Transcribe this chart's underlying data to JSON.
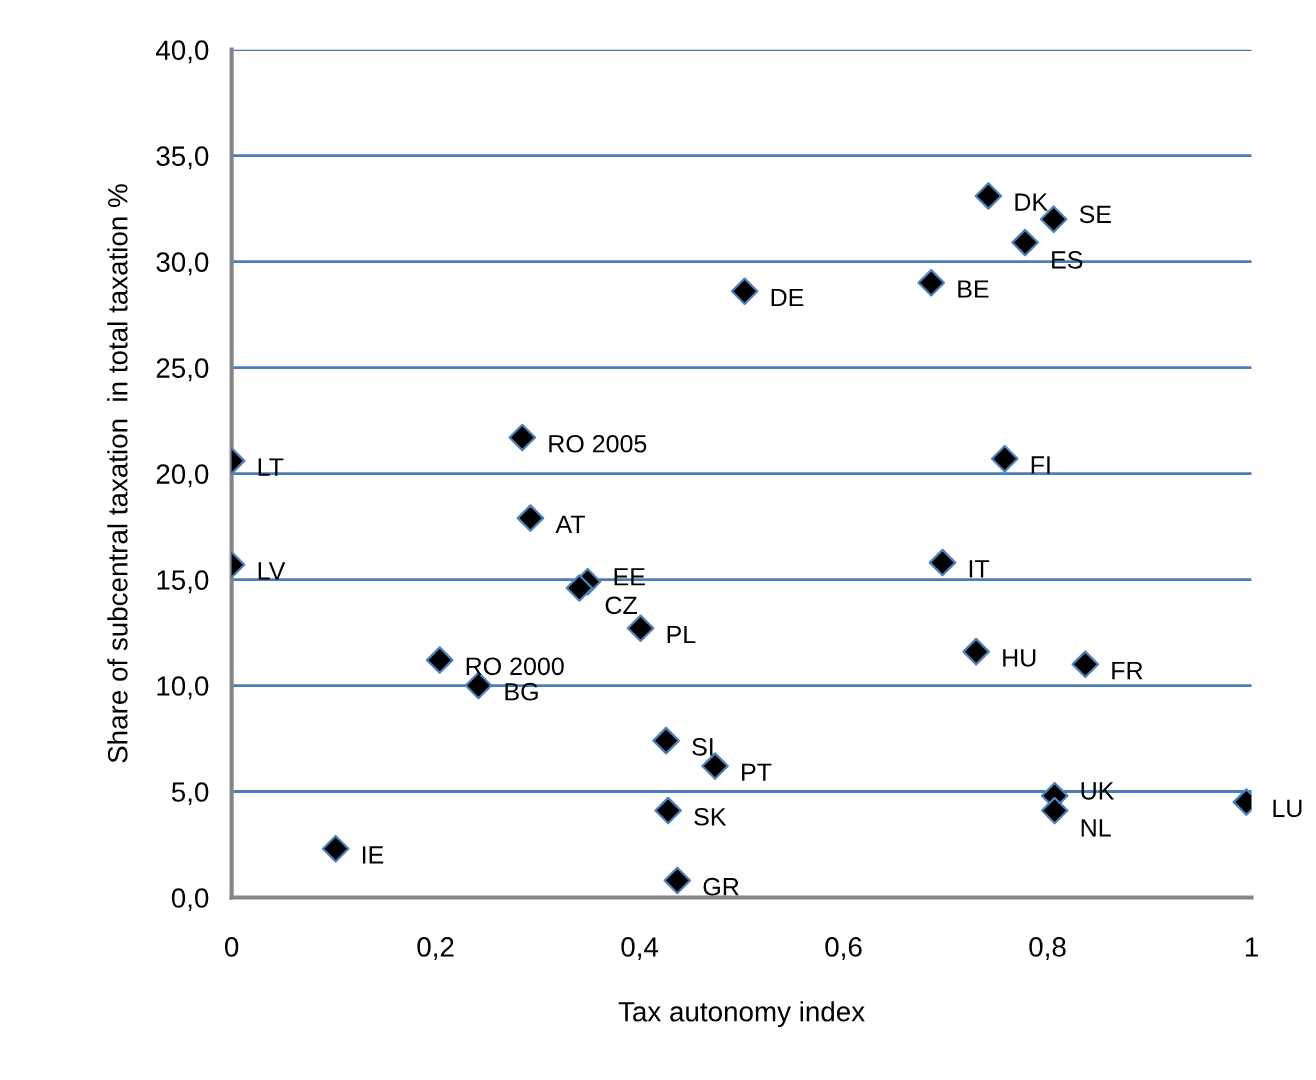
{
  "chart_data": {
    "type": "scatter",
    "xlabel": "Tax autonomy index",
    "ylabel": "Share of subcentral taxation  in total taxation %",
    "x": [
      0,
      0.285,
      0.293,
      0.742,
      0.806,
      0.778,
      0.503,
      0.686,
      0.758,
      0,
      0.349,
      0.341,
      0.401,
      0.204,
      0.242,
      0.426,
      0.474,
      0.428,
      0.102,
      0.437,
      0.697,
      0.73,
      0.837,
      0.807,
      0.807,
      0.995
    ],
    "series": [
      {
        "color": "#000000",
        "values": [
          20.6,
          21.7,
          17.9,
          33.1,
          32.0,
          30.9,
          28.6,
          29.0,
          20.7,
          15.7,
          14.9,
          14.6,
          12.7,
          11.2,
          10.0,
          7.4,
          6.2,
          4.1,
          2.3,
          0.8,
          15.8,
          11.6,
          11.0,
          4.8,
          4.1,
          4.5
        ]
      }
    ],
    "annotations": [
      {
        "text": "LT",
        "x": 0,
        "y": 20.6
      },
      {
        "text": "RO 2005",
        "x": 0.285,
        "y": 21.7
      },
      {
        "text": "AT",
        "x": 0.293,
        "y": 17.9
      },
      {
        "text": "DK",
        "x": 0.742,
        "y": 33.1
      },
      {
        "text": "SE",
        "x": 0.806,
        "y": 32.0
      },
      {
        "text": "ES",
        "x": 0.778,
        "y": 30.9
      },
      {
        "text": "DE",
        "x": 0.503,
        "y": 28.6
      },
      {
        "text": "BE",
        "x": 0.686,
        "y": 29.0
      },
      {
        "text": "FI",
        "x": 0.758,
        "y": 20.7
      },
      {
        "text": "LV",
        "x": 0,
        "y": 15.7
      },
      {
        "text": "EE",
        "x": 0.349,
        "y": 14.9
      },
      {
        "text": "CZ",
        "x": 0.341,
        "y": 14.6
      },
      {
        "text": "PL",
        "x": 0.401,
        "y": 12.7
      },
      {
        "text": "RO 2000",
        "x": 0.204,
        "y": 11.2
      },
      {
        "text": "BG",
        "x": 0.242,
        "y": 10.0
      },
      {
        "text": "SI",
        "x": 0.426,
        "y": 7.4
      },
      {
        "text": "PT",
        "x": 0.474,
        "y": 6.2
      },
      {
        "text": "SK",
        "x": 0.428,
        "y": 4.1
      },
      {
        "text": "IE",
        "x": 0.102,
        "y": 2.3
      },
      {
        "text": "GR",
        "x": 0.437,
        "y": 0.8
      },
      {
        "text": "IT",
        "x": 0.697,
        "y": 15.8
      },
      {
        "text": "HU",
        "x": 0.73,
        "y": 11.6
      },
      {
        "text": "FR",
        "x": 0.837,
        "y": 11.0
      },
      {
        "text": "UK",
        "x": 0.807,
        "y": 4.8
      },
      {
        "text": "NL",
        "x": 0.807,
        "y": 4.1
      },
      {
        "text": "LU",
        "x": 0.995,
        "y": 4.5
      }
    ],
    "xlim": [
      0,
      1
    ],
    "ylim": [
      0,
      40
    ],
    "xticks": [
      0,
      {
        "value": 0.2,
        "label": "0,2"
      },
      {
        "value": 0.4,
        "label": "0,4"
      },
      {
        "value": 0.6,
        "label": "0,6"
      },
      {
        "value": 0.8,
        "label": "0,8"
      },
      1
    ],
    "yticks": [
      {
        "value": 0,
        "label": "0,0"
      },
      {
        "value": 5,
        "label": "5,0"
      },
      {
        "value": 10,
        "label": "10,0"
      },
      {
        "value": 15,
        "label": "15,0"
      },
      {
        "value": 20,
        "label": "20,0"
      },
      {
        "value": 25,
        "label": "25,0"
      },
      {
        "value": 30,
        "label": "30,0"
      },
      {
        "value": 35,
        "label": "35,0"
      },
      {
        "value": 40,
        "label": "40,0"
      }
    ],
    "grid": "y",
    "marker": "diamond",
    "legend": false
  }
}
